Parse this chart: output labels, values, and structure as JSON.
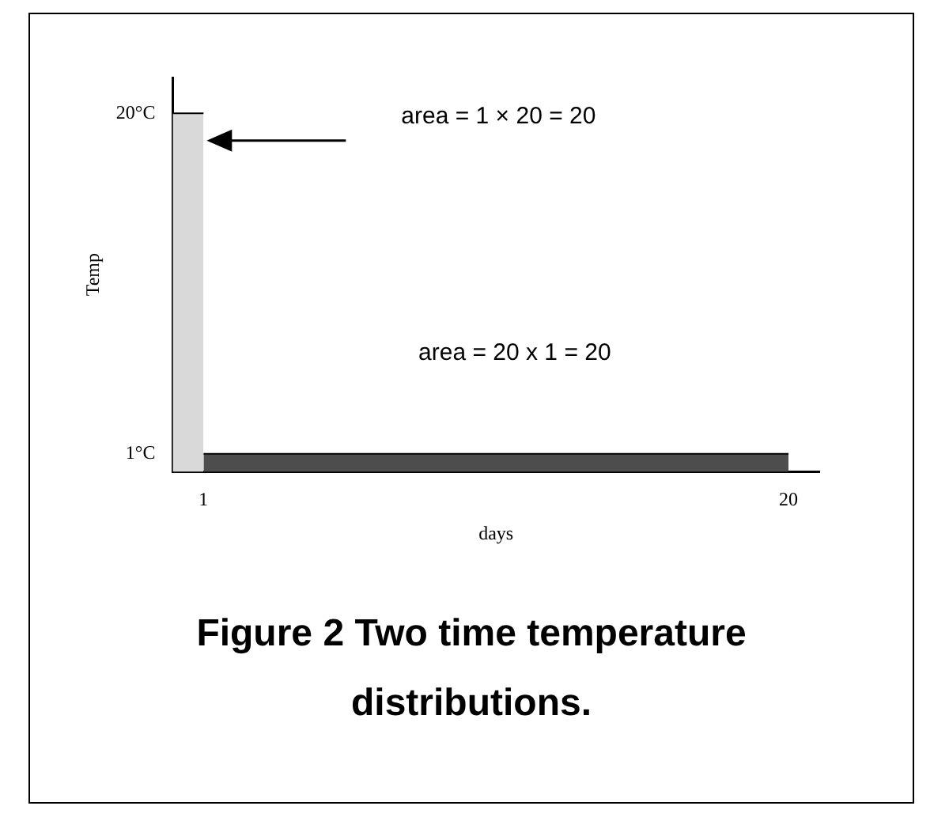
{
  "chart_data": {
    "type": "histogram",
    "title": "Figure 2  Two time temperature distributions.",
    "xlabel": "days",
    "ylabel": "Temp",
    "bins": [
      0,
      1,
      20
    ],
    "values": [
      20,
      1
    ],
    "colors": [
      "#d9d9d9",
      "#4d4d4d"
    ],
    "xlim": [
      0,
      21
    ],
    "xticks": [
      1,
      20
    ],
    "ylim": [
      0,
      22
    ],
    "yticks": [
      {
        "value": 1,
        "label": "1°C"
      },
      {
        "value": 20,
        "label": "20°C"
      }
    ],
    "legend": false,
    "annotations": [
      "area = 1 × 20 = 20",
      "area = 20 x 1 = 20"
    ]
  }
}
